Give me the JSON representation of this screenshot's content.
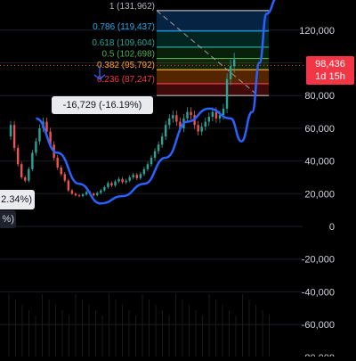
{
  "chart_data": {
    "type": "line",
    "yticks": [
      120000,
      100000,
      80000,
      60000,
      40000,
      20000,
      0,
      -20000,
      -40000,
      -60000,
      -80000
    ],
    "ytick_labels": [
      "120,000",
      "",
      "80,000",
      "60,000",
      "40,000",
      "20,000",
      "0",
      "-20,000",
      "-40,000",
      "-60,000",
      "-80,000"
    ],
    "ylim": [
      -85000,
      140000
    ],
    "price_series": {
      "x": [
        0,
        1,
        2,
        3,
        4,
        5,
        6,
        7,
        8,
        9,
        10,
        11,
        12,
        13,
        14,
        15,
        16,
        17,
        18,
        19,
        20,
        21,
        22,
        23,
        24,
        25,
        26,
        27,
        28,
        29,
        30,
        31,
        32,
        33,
        34,
        35,
        36,
        37,
        38,
        39,
        40,
        41,
        42,
        43,
        44,
        45,
        46,
        47,
        48,
        49,
        50,
        51,
        52,
        53,
        54,
        55,
        56,
        57,
        58,
        59,
        60,
        61,
        62,
        63
      ],
      "values": [
        55000,
        62000,
        48000,
        38000,
        30000,
        28000,
        35000,
        45000,
        52000,
        60000,
        64000,
        58000,
        50000,
        42000,
        36000,
        32000,
        28000,
        22000,
        20000,
        19000,
        18500,
        19500,
        21000,
        20000,
        19000,
        20500,
        22000,
        24000,
        26500,
        25000,
        27500,
        29000,
        27000,
        28000,
        30000,
        31500,
        29500,
        32000,
        35000,
        38000,
        42000,
        46000,
        50000,
        55000,
        62000,
        66000,
        68000,
        64000,
        60000,
        66000,
        70000,
        68000,
        62000,
        58000,
        61000,
        64000,
        67000,
        70000,
        66000,
        68000,
        72000,
        90000,
        98000,
        102000
      ]
    },
    "channel_curve": {
      "x": [
        8,
        14,
        20,
        26,
        32,
        38,
        44,
        50,
        56,
        62,
        65,
        68,
        70,
        72,
        75
      ],
      "values": [
        66000,
        45000,
        26000,
        14000,
        18500,
        26000,
        42000,
        64000,
        72000,
        66000,
        52000,
        70000,
        100000,
        130000,
        140000
      ]
    },
    "fib_levels": [
      {
        "ratio": "1",
        "label": "1 (131,962)",
        "price": 131962,
        "color": "#b2b5be"
      },
      {
        "ratio": "0.786",
        "label": "0.786 (119,437)",
        "price": 119437,
        "color": "#22a8f2"
      },
      {
        "ratio": "0.618",
        "label": "0.618 (109,604)",
        "price": 109604,
        "color": "#26a69a"
      },
      {
        "ratio": "0.5",
        "label": "0.5 (102,698)",
        "price": 102698,
        "color": "#4caf50"
      },
      {
        "ratio": "0.382",
        "label": "0.382 (95,792)",
        "price": 95792,
        "color": "#f9a825"
      },
      {
        "ratio": "0.236",
        "label": "0.236 (87,247)",
        "price": 87247,
        "color": "#f23645"
      },
      {
        "ratio": "0",
        "label": "",
        "price": 80000,
        "color": "#b2b5be"
      }
    ],
    "last_price": {
      "value": 98436,
      "label": "98,436",
      "countdown": "1d 15h"
    },
    "measurement": {
      "label": "-16,729 (-16.19%)"
    },
    "left_labels": [
      "2.34%)",
      "%)"
    ]
  },
  "colors": {
    "background": "#000000",
    "candle_up": "#26a69a",
    "candle_down": "#ef5350",
    "channel": "#2962ff",
    "grid": "#1c1f26",
    "axis_text": "#d1d4dc"
  }
}
